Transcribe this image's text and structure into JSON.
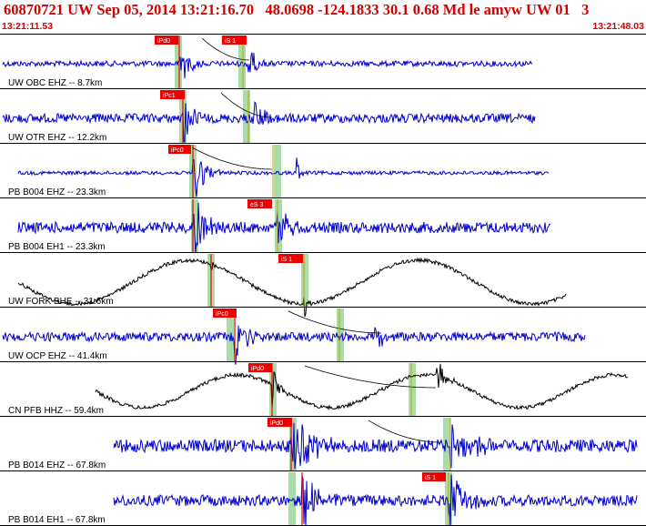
{
  "header": {
    "title": "60870721 UW Sep 05, 2014 13:21:16.70   48.0698 -124.1833 30.1 0.68 Md le amyw UW 01   3",
    "time_start": "13:21:11.53",
    "time_end": "13:21:48.03"
  },
  "colors": {
    "title_red": "#d40000",
    "trace_blue": "#0000d0",
    "trace_black": "#000000",
    "pick_red": "#ee0000",
    "window_green": "#a8dca8",
    "marker_orange": "#c8a000"
  },
  "traces": [
    {
      "label": "UW OBC EHZ -- 8.7km",
      "color": "blue",
      "p_label": "iPd0",
      "s_label": "iS 1"
    },
    {
      "label": "UW OTR EHZ -- 12.2km",
      "color": "blue",
      "p_label": "iPc1",
      "s_label": ""
    },
    {
      "label": "PB B004 EHZ -- 23.3km",
      "color": "blue",
      "p_label": "iPc0",
      "s_label": ""
    },
    {
      "label": "PB B004 EH1 -- 23.3km",
      "color": "blue",
      "p_label": "",
      "s_label": "eS 3"
    },
    {
      "label": "UW FORK BHE -- 31.6km",
      "color": "black",
      "p_label": "",
      "s_label": "iS 1"
    },
    {
      "label": "UW OCP EHZ -- 41.4km",
      "color": "blue",
      "p_label": "iPc0",
      "s_label": ""
    },
    {
      "label": "CN PFB HHZ -- 59.4km",
      "color": "black",
      "p_label": "iPd0",
      "s_label": ""
    },
    {
      "label": "PB B014 EHZ -- 67.8km",
      "color": "blue",
      "p_label": "iPd0",
      "s_label": ""
    },
    {
      "label": "PB B014 EH1 -- 67.8km",
      "color": "blue",
      "p_label": "",
      "s_label": "iS 1"
    }
  ]
}
